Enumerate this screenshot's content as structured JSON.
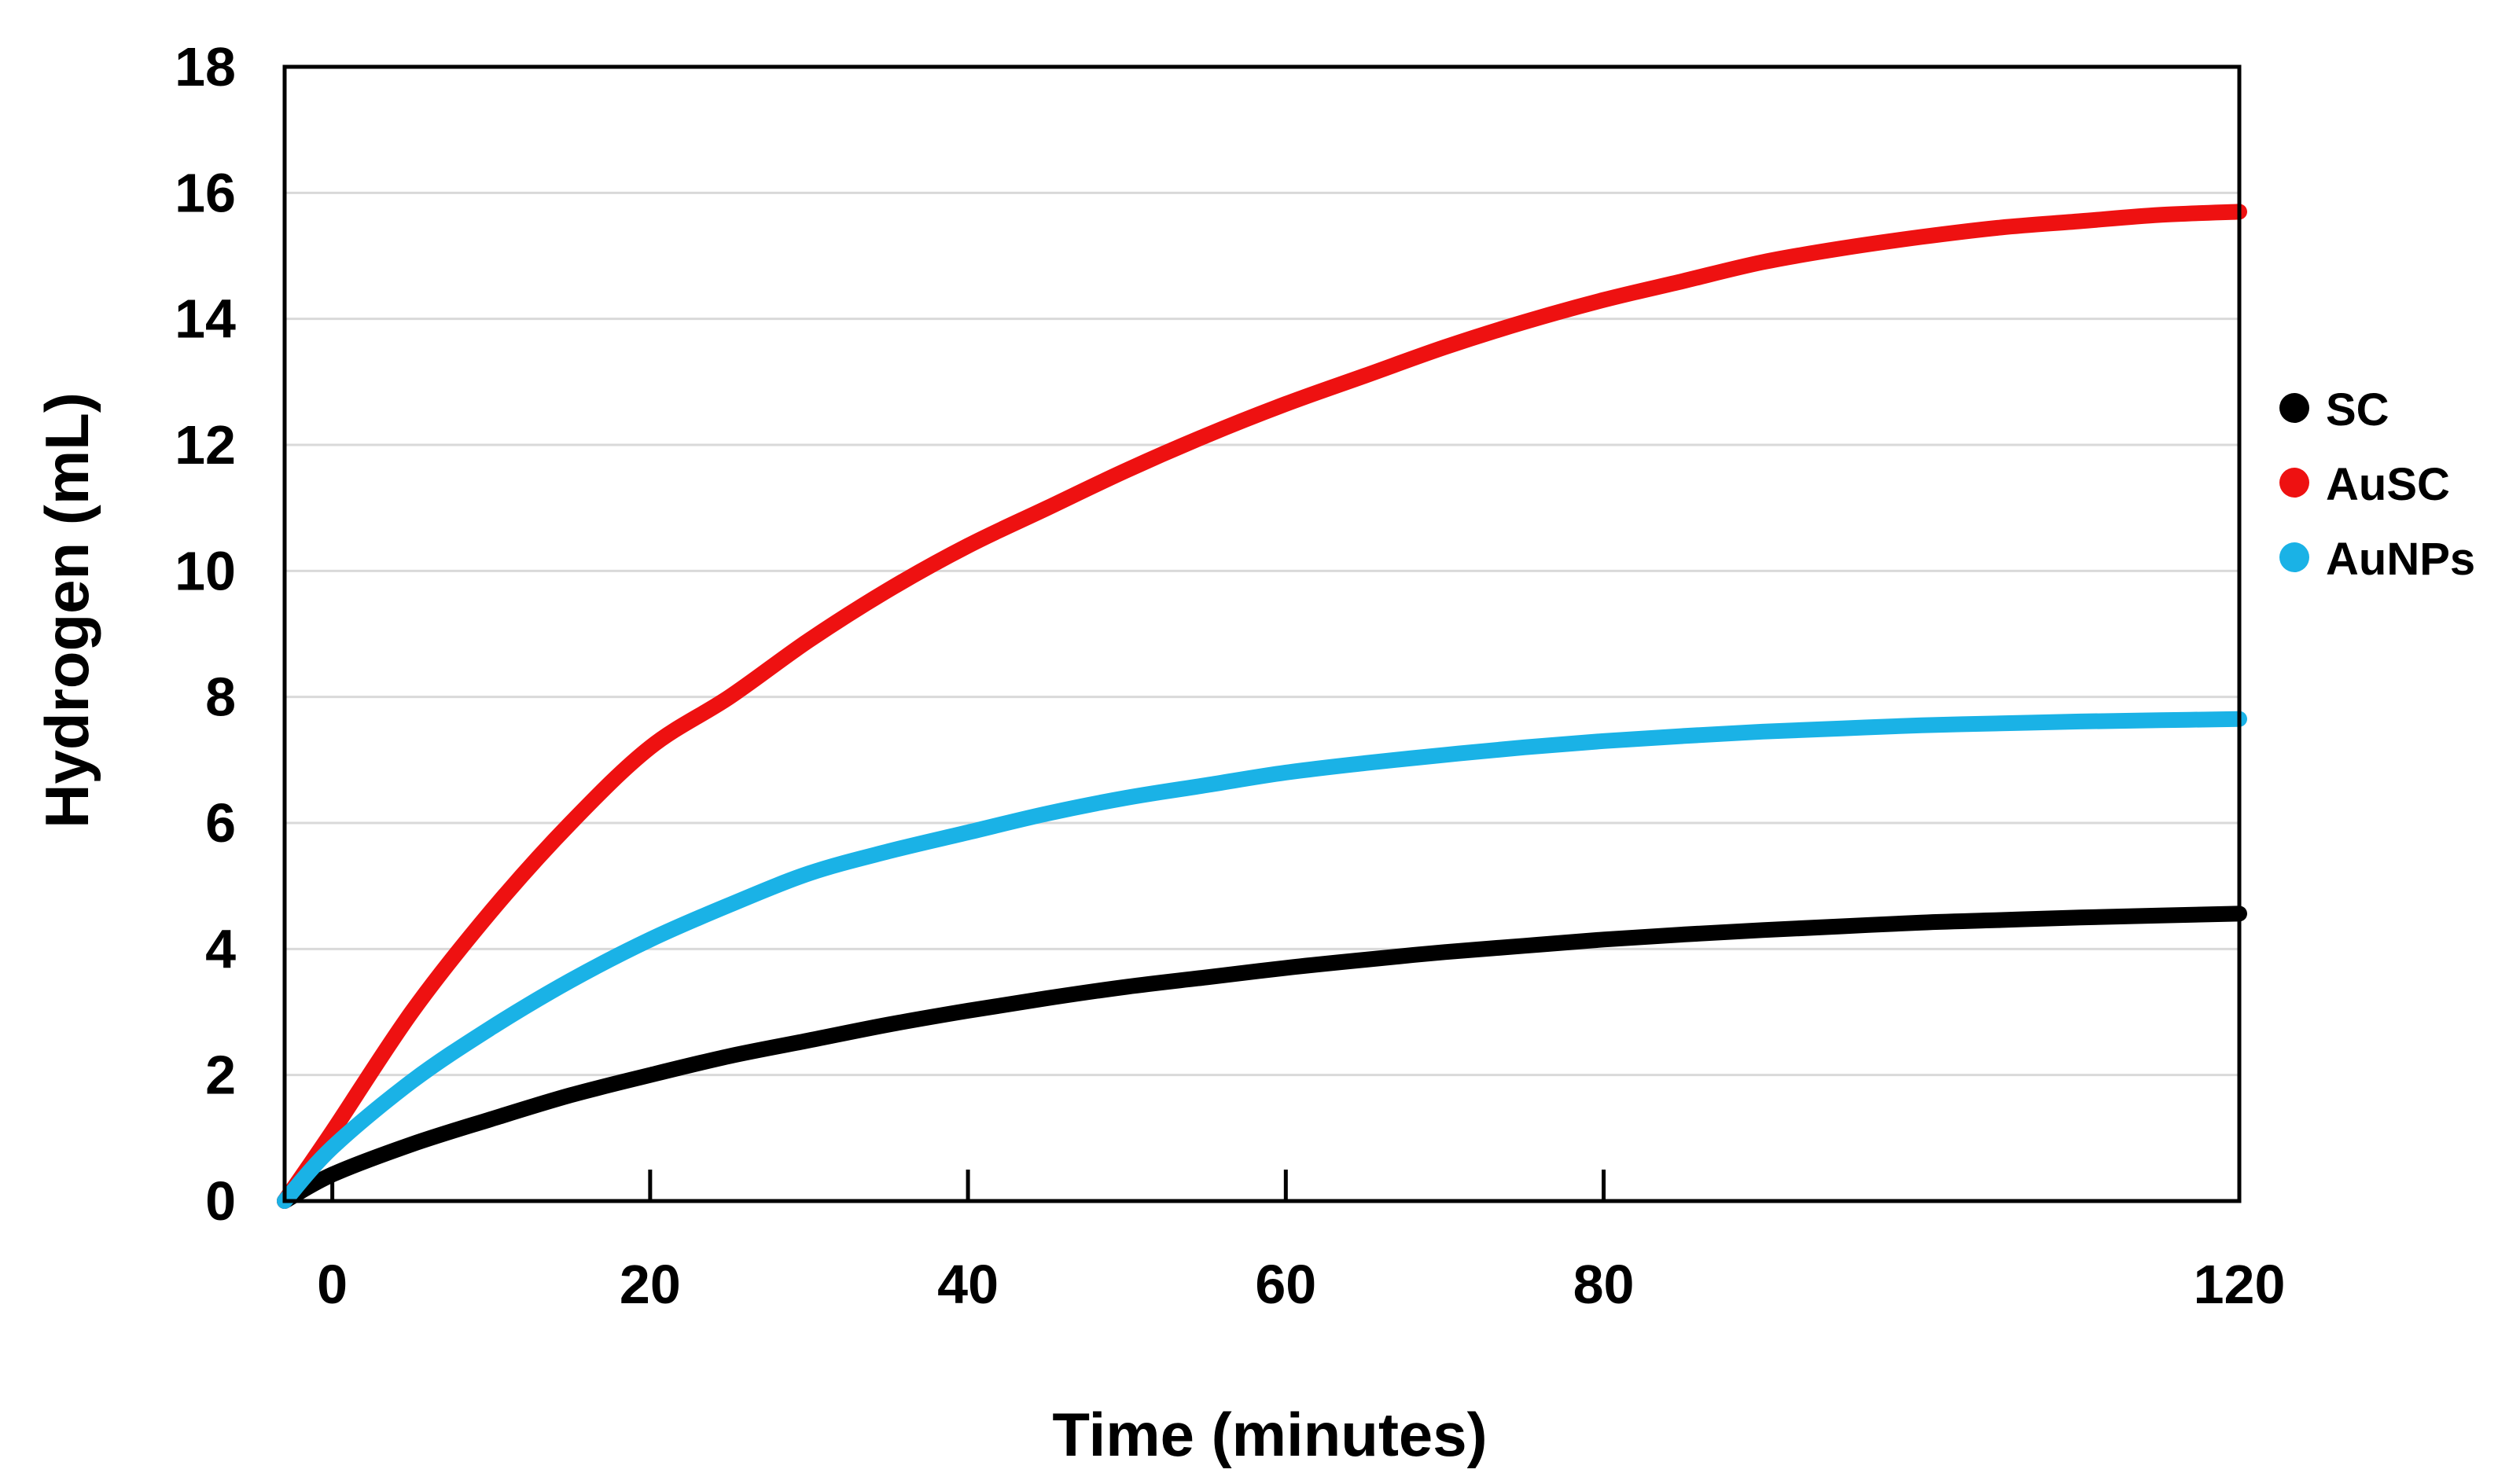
{
  "chart_data": {
    "type": "line",
    "title": "",
    "xlabel": "Time (minutes)",
    "ylabel": "Hydrogen (mL)",
    "xlim": [
      -3,
      120
    ],
    "ylim": [
      0,
      18
    ],
    "x_ticks": [
      0,
      20,
      40,
      60,
      80,
      120
    ],
    "y_ticks": [
      0,
      2,
      4,
      6,
      8,
      10,
      12,
      14,
      16,
      18
    ],
    "grid": "horizontal",
    "legend_position": "right",
    "x": [
      -3,
      0,
      5,
      10,
      15,
      20,
      25,
      30,
      35,
      40,
      45,
      50,
      55,
      60,
      65,
      70,
      75,
      80,
      85,
      90,
      95,
      100,
      105,
      110,
      115,
      120
    ],
    "series": [
      {
        "name": "SC",
        "color": "#000000",
        "values": [
          0,
          0.42,
          0.9,
          1.3,
          1.68,
          2.0,
          2.3,
          2.55,
          2.8,
          3.02,
          3.22,
          3.4,
          3.55,
          3.7,
          3.83,
          3.95,
          4.05,
          4.15,
          4.23,
          4.3,
          4.36,
          4.42,
          4.46,
          4.5,
          4.53,
          4.56
        ]
      },
      {
        "name": "AuSC",
        "color": "#ee1111",
        "values": [
          0,
          1.1,
          3.0,
          4.6,
          6.0,
          7.2,
          8.0,
          8.9,
          9.7,
          10.4,
          11.0,
          11.6,
          12.15,
          12.65,
          13.1,
          13.55,
          13.95,
          14.3,
          14.6,
          14.9,
          15.12,
          15.3,
          15.45,
          15.55,
          15.65,
          15.7
        ]
      },
      {
        "name": "AuNPs",
        "color": "#1ab2e6",
        "values": [
          0,
          0.85,
          1.9,
          2.75,
          3.5,
          4.15,
          4.7,
          5.2,
          5.55,
          5.85,
          6.15,
          6.4,
          6.6,
          6.8,
          6.95,
          7.08,
          7.2,
          7.3,
          7.38,
          7.45,
          7.5,
          7.55,
          7.58,
          7.61,
          7.63,
          7.65
        ]
      }
    ]
  }
}
